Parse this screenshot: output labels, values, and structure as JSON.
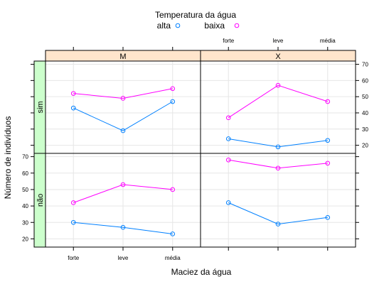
{
  "chart_data": {
    "type": "line",
    "title": "",
    "xlabel": "Maciez da água",
    "ylabel": "Número de indivíduos",
    "categories": [
      "forte",
      "leve",
      "média"
    ],
    "ylim": [
      15,
      72
    ],
    "yticks": [
      20,
      30,
      40,
      50,
      60,
      70
    ],
    "legend": {
      "title": "Temperatura da água",
      "position": "top",
      "entries": [
        {
          "name": "alta",
          "color": "#0080ff"
        },
        {
          "name": "baixa",
          "color": "#ff00ff"
        }
      ]
    },
    "panels": [
      {
        "column": "M",
        "row": "sim",
        "series": [
          {
            "name": "alta",
            "color": "#0080ff",
            "values": [
              43,
              29,
              47
            ]
          },
          {
            "name": "baixa",
            "color": "#ff00ff",
            "values": [
              52,
              49,
              55
            ]
          }
        ]
      },
      {
        "column": "X",
        "row": "sim",
        "series": [
          {
            "name": "alta",
            "color": "#0080ff",
            "values": [
              24,
              19,
              23
            ]
          },
          {
            "name": "baixa",
            "color": "#ff00ff",
            "values": [
              37,
              57,
              47
            ]
          }
        ]
      },
      {
        "column": "M",
        "row": "não",
        "series": [
          {
            "name": "alta",
            "color": "#0080ff",
            "values": [
              30,
              27,
              23
            ]
          },
          {
            "name": "baixa",
            "color": "#ff00ff",
            "values": [
              42,
              53,
              50
            ]
          }
        ]
      },
      {
        "column": "X",
        "row": "não",
        "series": [
          {
            "name": "alta",
            "color": "#0080ff",
            "values": [
              42,
              29,
              33
            ]
          },
          {
            "name": "baixa",
            "color": "#ff00ff",
            "values": [
              68,
              63,
              66
            ]
          }
        ]
      }
    ],
    "strip_colors": {
      "column": "#ffe5cc",
      "row": "#ccffcc"
    },
    "grid": true
  }
}
